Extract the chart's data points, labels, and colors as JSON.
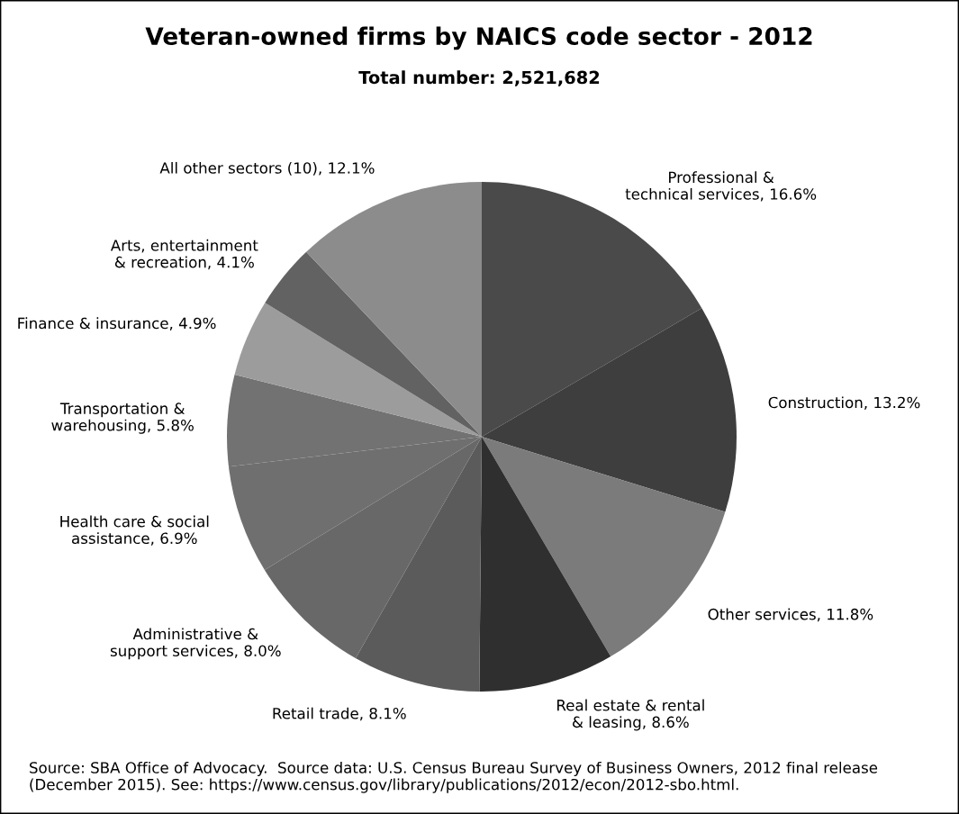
{
  "chart_data": {
    "type": "pie",
    "title": "Veteran-owned firms by NAICS code sector - 2012",
    "subtitle": "Total number: 2,521,682",
    "categories": [
      "Professional &\ntechnical services",
      "Construction",
      "Other services",
      "Real estate & rental\n& leasing",
      "Retail trade",
      "Administrative &\nsupport services",
      "Health care & social\nassistance",
      "Transportation &\nwarehousing",
      "Finance & insurance",
      "Arts, entertainment\n& recreation",
      "All other sectors (10)"
    ],
    "values": [
      16.6,
      13.2,
      11.8,
      8.6,
      8.1,
      8.0,
      6.9,
      5.8,
      4.9,
      4.1,
      12.1
    ],
    "value_labels": [
      "16.6%",
      "13.2%",
      "11.8%",
      "8.6%",
      "8.1%",
      "8.0%",
      "6.9%",
      "5.8%",
      "4.9%",
      "4.1%",
      "12.1%"
    ],
    "colors": [
      "#4a4a4a",
      "#3e3e3e",
      "#7b7b7b",
      "#2f2f2f",
      "#5b5b5b",
      "#686868",
      "#6f6f6f",
      "#727272",
      "#9c9c9c",
      "#626262",
      "#8c8c8c"
    ],
    "annotations": [
      "Source: SBA Office of Advocacy.  Source data: U.S. Census Bureau Survey of Business Owners, 2012 final release (December 2015). See: https://www.census.gov/library/publications/2012/econ/2012-sbo.html."
    ],
    "legend": false
  }
}
